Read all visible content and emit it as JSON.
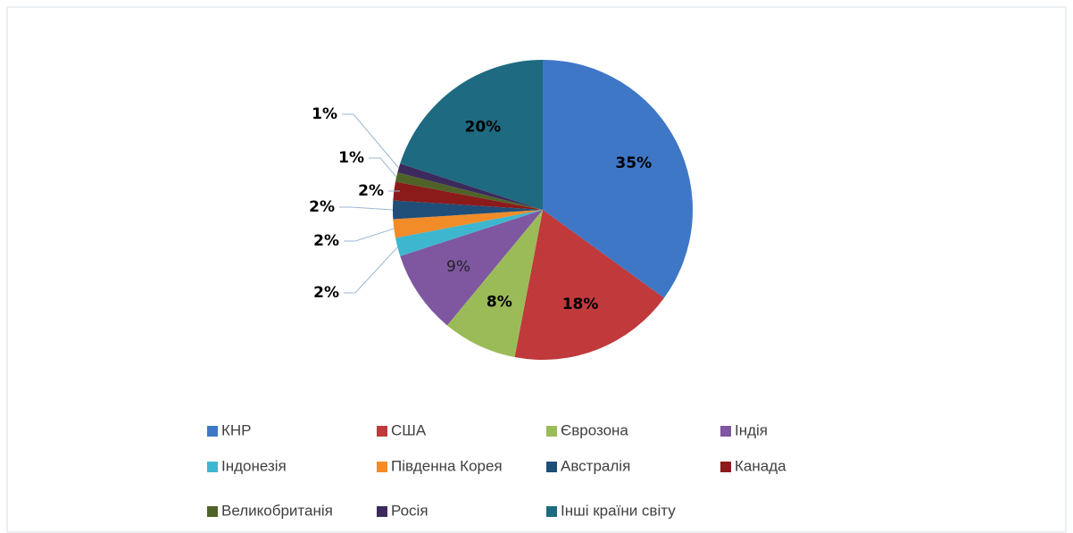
{
  "chart_data": {
    "type": "pie",
    "categories": [
      "КНР",
      "США",
      "Єврозона",
      "Індія",
      "Індонезія",
      "Південна Корея",
      "Австралія",
      "Канада",
      "Великобританія",
      "Росія",
      "Інші країни світу"
    ],
    "values": [
      35,
      18,
      8,
      9,
      2,
      2,
      2,
      2,
      1,
      1,
      20
    ],
    "value_labels": [
      "35%",
      "18%",
      "8%",
      "9%",
      "2%",
      "2%",
      "2%",
      "2%",
      "1%",
      "1%",
      "20%"
    ],
    "colors": [
      "#3f77c7",
      "#c0393b",
      "#9bbb59",
      "#7e57a0",
      "#3fb6d0",
      "#f28c28",
      "#1f4e79",
      "#8b1a1a",
      "#4f6228",
      "#3d2a5c",
      "#1e6a80"
    ],
    "legend": "bottom"
  }
}
